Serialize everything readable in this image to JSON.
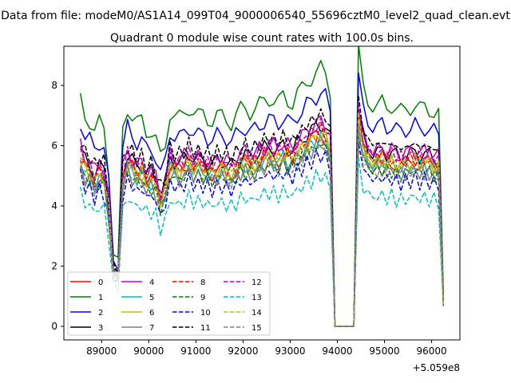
{
  "chart_data": {
    "type": "line",
    "suptitle": "Data from file: modeM0/AS1A14_099T04_9000006540_55696cztM0_level2_quad_clean.evt",
    "title": "Quadrant 0 module wise count rates with 100.0s bins.",
    "xlabel": "",
    "ylabel": "",
    "x_offset_label": "+5.059e8",
    "xlim": [
      88200,
      96600
    ],
    "ylim": [
      -0.45,
      9.3
    ],
    "x_ticks": [
      89000,
      90000,
      91000,
      92000,
      93000,
      94000,
      95000,
      96000
    ],
    "x_tick_labels": [
      "89000",
      "90000",
      "91000",
      "92000",
      "93000",
      "94000",
      "95000",
      "96000"
    ],
    "y_ticks": [
      0,
      2,
      4,
      6,
      8
    ],
    "y_tick_labels": [
      "0",
      "2",
      "4",
      "6",
      "8"
    ],
    "x": {
      "start": 88550,
      "step": 100,
      "count": 78
    },
    "shape": [
      1.0,
      0.93,
      0.91,
      0.86,
      0.9,
      0.88,
      0.7,
      0.32,
      0.29,
      0.87,
      0.97,
      0.93,
      0.9,
      0.91,
      0.86,
      0.87,
      0.83,
      0.74,
      0.8,
      0.95,
      0.93,
      0.92,
      0.94,
      0.97,
      0.95,
      0.93,
      0.94,
      0.92,
      0.91,
      0.93,
      0.93,
      0.92,
      0.9,
      0.93,
      0.96,
      0.97,
      0.95,
      0.96,
      0.98,
      1.0,
      1.01,
      1.0,
      0.99,
      1.02,
      1.0,
      0.99,
      1.03,
      1.05,
      1.08,
      1.1,
      1.12,
      1.14,
      1.12,
      1.05,
      0.0,
      0.0,
      0.0,
      0.0,
      0.0,
      1.22,
      1.05,
      1.0,
      0.98,
      0.97,
      0.99,
      0.97,
      0.98,
      0.96,
      0.95,
      0.96,
      0.97,
      0.98,
      0.96,
      0.97,
      0.96,
      0.95,
      0.94,
      0.14
    ],
    "series": [
      {
        "name": "0",
        "level": 5.6,
        "color": "#ff0000",
        "dash": "solid"
      },
      {
        "name": "1",
        "level": 7.5,
        "color": "#008000",
        "dash": "solid"
      },
      {
        "name": "2",
        "level": 6.8,
        "color": "#0000ff",
        "dash": "solid"
      },
      {
        "name": "3",
        "level": 5.9,
        "color": "#000000",
        "dash": "solid"
      },
      {
        "name": "4",
        "level": 6.0,
        "color": "#bf00bf",
        "dash": "solid"
      },
      {
        "name": "5",
        "level": 5.5,
        "color": "#00bfbf",
        "dash": "solid"
      },
      {
        "name": "6",
        "level": 5.6,
        "color": "#bfbf00",
        "dash": "solid"
      },
      {
        "name": "7",
        "level": 5.3,
        "color": "#808080",
        "dash": "solid"
      },
      {
        "name": "8",
        "level": 5.7,
        "color": "#ff0000",
        "dash": "dashed"
      },
      {
        "name": "9",
        "level": 5.3,
        "color": "#008000",
        "dash": "dashed"
      },
      {
        "name": "10",
        "level": 5.0,
        "color": "#0000ff",
        "dash": "dashed"
      },
      {
        "name": "11",
        "level": 6.2,
        "color": "#000000",
        "dash": "dashed"
      },
      {
        "name": "12",
        "level": 5.9,
        "color": "#bf00bf",
        "dash": "dashed"
      },
      {
        "name": "13",
        "level": 4.4,
        "color": "#00bfbf",
        "dash": "dashed"
      },
      {
        "name": "14",
        "level": 5.6,
        "color": "#bfbf00",
        "dash": "dashed"
      },
      {
        "name": "15",
        "level": 5.3,
        "color": "#808080",
        "dash": "dashed"
      }
    ],
    "legend": {
      "position": "lower-left",
      "columns": 4
    }
  }
}
